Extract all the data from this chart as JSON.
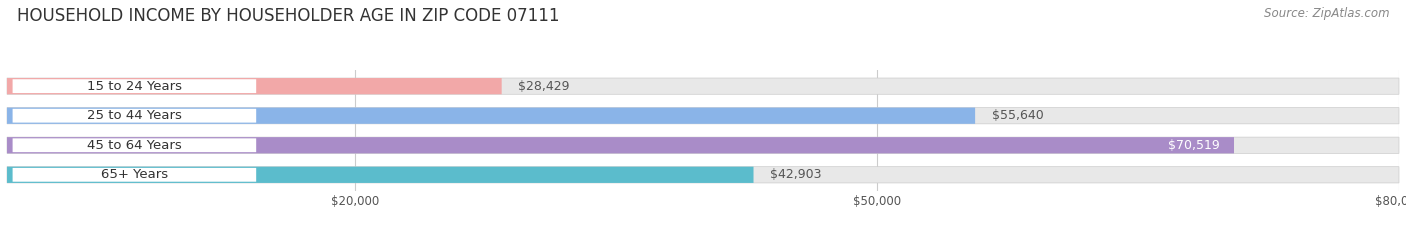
{
  "title": "HOUSEHOLD INCOME BY HOUSEHOLDER AGE IN ZIP CODE 07111",
  "source": "Source: ZipAtlas.com",
  "categories": [
    "15 to 24 Years",
    "25 to 44 Years",
    "45 to 64 Years",
    "65+ Years"
  ],
  "values": [
    28429,
    55640,
    70519,
    42903
  ],
  "bar_colors": [
    "#f2a8a8",
    "#8ab4e8",
    "#a98cc8",
    "#5bbccc"
  ],
  "value_label_colors": [
    "#555555",
    "#555555",
    "#ffffff",
    "#555555"
  ],
  "bg_color": "#ffffff",
  "bar_bg_color": "#e8e8e8",
  "xlim_max": 80000,
  "xticks": [
    20000,
    50000,
    80000
  ],
  "xtick_labels": [
    "$20,000",
    "$50,000",
    "$80,000"
  ],
  "title_fontsize": 12,
  "source_fontsize": 8.5,
  "bar_label_fontsize": 9,
  "category_fontsize": 9.5
}
